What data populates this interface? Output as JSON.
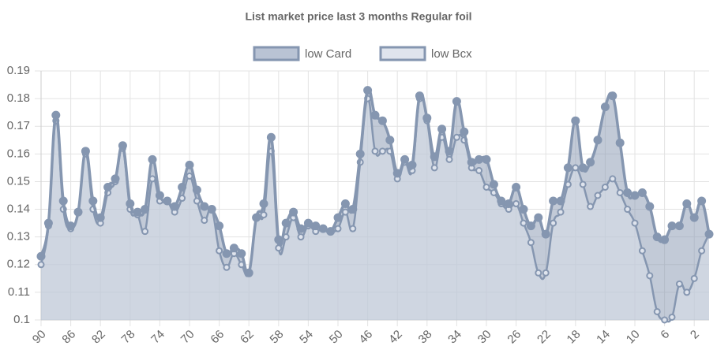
{
  "chart_data": {
    "type": "line",
    "title": "List market price last 3 months Regular foil",
    "categories": [
      "90",
      null,
      null,
      null,
      "86",
      null,
      null,
      null,
      "82",
      null,
      null,
      null,
      "78",
      null,
      null,
      null,
      "74",
      null,
      null,
      null,
      "70",
      null,
      null,
      null,
      "66",
      null,
      null,
      null,
      "62",
      null,
      null,
      null,
      "58",
      null,
      null,
      null,
      "54",
      null,
      null,
      null,
      "50",
      null,
      null,
      null,
      "46",
      null,
      null,
      null,
      "42",
      null,
      null,
      null,
      "38",
      null,
      null,
      null,
      "34",
      null,
      null,
      null,
      "30",
      null,
      null,
      null,
      "26",
      null,
      null,
      null,
      "22",
      null,
      null,
      null,
      "18",
      null,
      null,
      null,
      "14",
      null,
      null,
      null,
      "10",
      null,
      null,
      null,
      "6",
      null,
      null,
      null,
      "2",
      null,
      null
    ],
    "series": [
      {
        "name": "low Card",
        "color": "#8596b0",
        "fill": "rgba(133,150,176,0.5)",
        "values": [
          0.123,
          0.135,
          0.174,
          0.143,
          0.134,
          0.139,
          0.161,
          0.143,
          0.137,
          0.148,
          0.151,
          0.163,
          0.142,
          0.139,
          0.14,
          0.158,
          0.145,
          0.143,
          0.141,
          0.148,
          0.156,
          0.147,
          0.141,
          0.14,
          0.134,
          0.124,
          0.126,
          0.124,
          0.117,
          0.137,
          0.142,
          0.166,
          0.129,
          0.135,
          0.139,
          0.133,
          0.135,
          0.134,
          0.133,
          0.132,
          0.137,
          0.142,
          0.14,
          0.16,
          0.183,
          0.174,
          0.172,
          0.165,
          0.153,
          0.158,
          0.156,
          0.181,
          0.173,
          0.159,
          0.169,
          0.161,
          0.179,
          0.168,
          0.157,
          0.158,
          0.158,
          0.149,
          0.143,
          0.142,
          0.148,
          0.14,
          0.134,
          0.137,
          0.131,
          0.143,
          0.143,
          0.155,
          0.172,
          0.155,
          0.157,
          0.165,
          0.177,
          0.181,
          0.164,
          0.146,
          0.145,
          0.146,
          0.141,
          0.13,
          0.129,
          0.134,
          0.134,
          0.142,
          0.137,
          0.143,
          0.131
        ]
      },
      {
        "name": "low Bcx",
        "color": "#8596b0",
        "fill": "rgba(220,226,236,0.5)",
        "values": [
          0.12,
          0.134,
          0.172,
          0.14,
          0.133,
          0.139,
          0.16,
          0.14,
          0.135,
          0.146,
          0.15,
          0.162,
          0.14,
          0.138,
          0.132,
          0.151,
          0.143,
          0.143,
          0.139,
          0.144,
          0.152,
          0.143,
          0.136,
          0.14,
          0.125,
          0.119,
          0.124,
          0.12,
          0.117,
          0.137,
          0.138,
          0.161,
          0.126,
          0.13,
          0.137,
          0.13,
          0.134,
          0.132,
          0.133,
          0.132,
          0.133,
          0.139,
          0.133,
          0.157,
          0.18,
          0.161,
          0.161,
          0.161,
          0.151,
          0.157,
          0.154,
          0.18,
          0.172,
          0.155,
          0.166,
          0.158,
          0.166,
          0.165,
          0.155,
          0.154,
          0.148,
          0.146,
          0.142,
          0.14,
          0.142,
          0.135,
          0.128,
          0.117,
          0.117,
          0.135,
          0.139,
          0.149,
          0.155,
          0.149,
          0.141,
          0.145,
          0.148,
          0.151,
          0.146,
          0.14,
          0.135,
          0.125,
          0.116,
          0.103,
          0.1,
          0.101,
          0.113,
          0.11,
          0.115,
          0.125,
          0.131
        ]
      }
    ],
    "ylim": [
      0.1,
      0.19
    ],
    "yticks": [
      0.1,
      0.11,
      0.12,
      0.13,
      0.14,
      0.15,
      0.16,
      0.17,
      0.18,
      0.19
    ],
    "grid": true,
    "legend": "top"
  }
}
